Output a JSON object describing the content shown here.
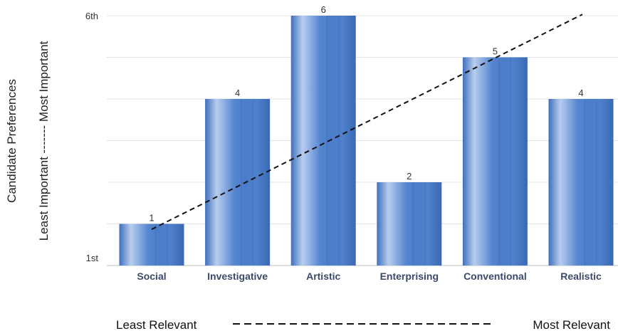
{
  "chart_data": {
    "type": "bar",
    "categories": [
      "Social",
      "Investigative",
      "Artistic",
      "Enterprising",
      "Conventional",
      "Realistic"
    ],
    "values": [
      1,
      4,
      6,
      2,
      5,
      4
    ],
    "data_labels": [
      "1",
      "4",
      "6",
      "2",
      "5",
      "4"
    ],
    "ylim": [
      0,
      6
    ],
    "y_tick_labels": {
      "bottom": "1st",
      "top": "6th"
    },
    "ylabel": {
      "line1": "Candidate Preferences",
      "line2": "Least Important ------- Most Important"
    },
    "bottom_axis": {
      "left": "Least Relevant",
      "right": "Most Relevant"
    },
    "trend_line": {
      "style": "dashed",
      "from_value": 0.87,
      "to_value": 6.03
    },
    "grid": true,
    "bar_color": "#4a7cc9",
    "bar_highlight_color": "#b8cdee",
    "category_label_color": "#3b4a6b"
  }
}
